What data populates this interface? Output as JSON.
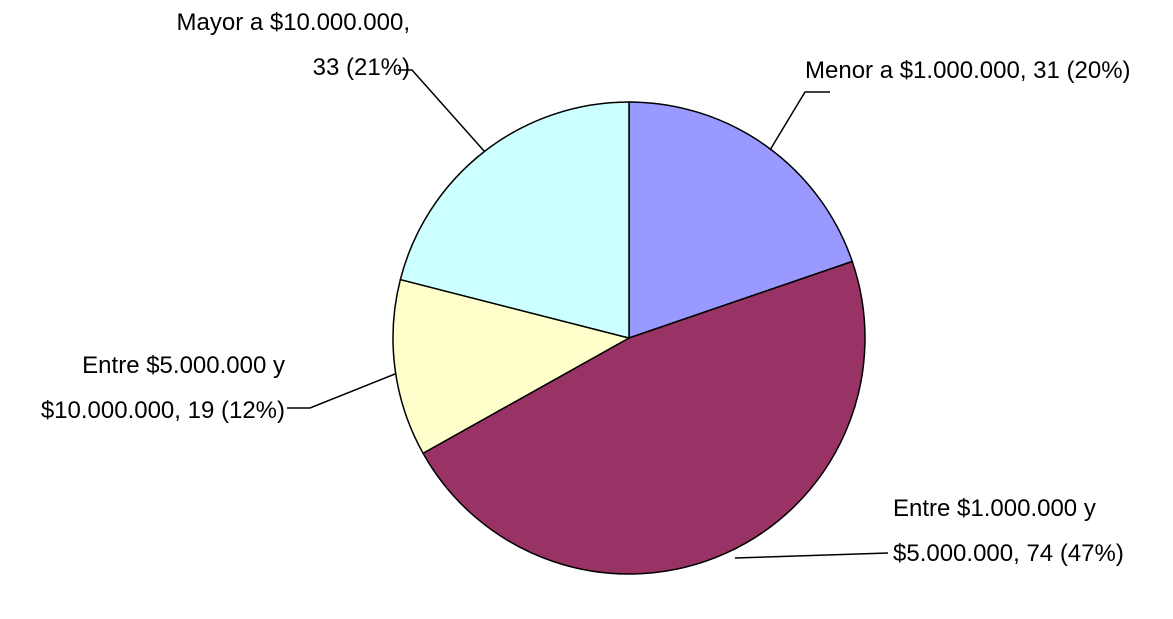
{
  "chart_data": {
    "type": "pie",
    "categories": [
      "Menor a $1.000.000",
      "Entre $1.000.000 y $5.000.000",
      "Entre $5.000.000 y $10.000.000",
      "Mayor a $10.000.000"
    ],
    "values": [
      31,
      74,
      19,
      33
    ],
    "value_labels": [
      "Menor a $1.000.000, 31 (20%)",
      "Entre $1.000.000 y $5.000.000, 74 (47%)",
      "Entre $5.000.000 y $10.000.000, 19 (12%)",
      "Mayor a $10.000.000, 33 (21%)"
    ],
    "colors": [
      "#9999ff",
      "#993366",
      "#ffffcc",
      "#ccffff"
    ]
  }
}
